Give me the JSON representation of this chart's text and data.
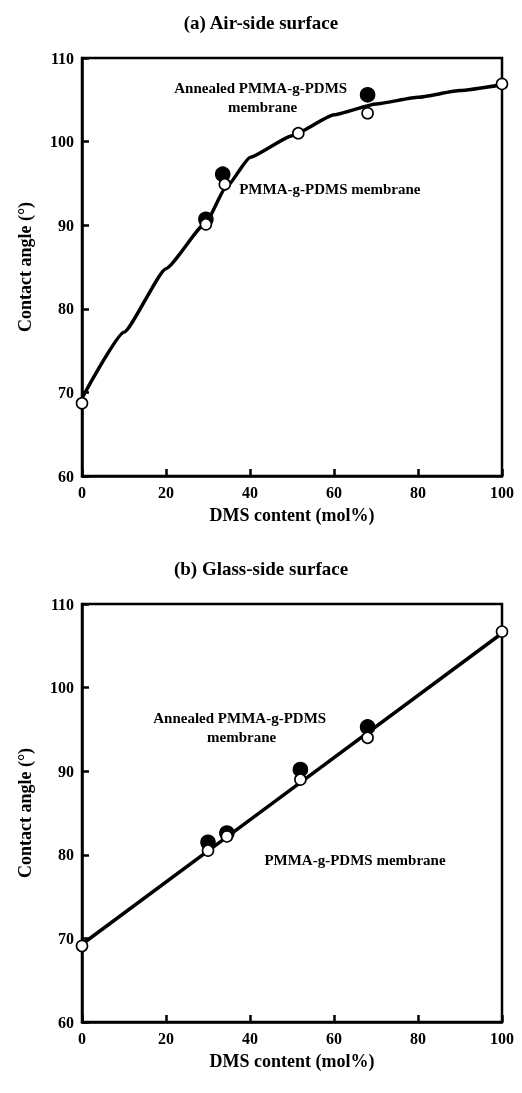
{
  "chart_data": [
    {
      "type": "scatter",
      "title": "(a) Air-side surface",
      "xlabel": "DMS content (mol%)",
      "ylabel": "Contact angle (°)",
      "xlim": [
        0,
        100
      ],
      "xticks": [
        0,
        20,
        40,
        60,
        80,
        100
      ],
      "ylim": [
        60,
        110
      ],
      "yticks": [
        60,
        70,
        80,
        90,
        100,
        110
      ],
      "grid": false,
      "legend": false,
      "marker": "circle",
      "series": [
        {
          "type": "line",
          "marker": "none",
          "color": "#000000",
          "x": [
            0,
            10,
            20,
            29.5,
            34,
            40,
            50,
            60,
            70,
            80,
            90,
            100
          ],
          "values": [
            69.3,
            77.2,
            84.8,
            90.3,
            94.3,
            98.1,
            100.7,
            103.2,
            104.5,
            105.3,
            106.1,
            106.8
          ]
        },
        {
          "name": "Annealed PMMA-g-PDMS membrane",
          "color": "#000000",
          "x": [
            29.5,
            33.5,
            68
          ],
          "values": [
            90.7,
            96.1,
            105.6
          ]
        },
        {
          "name": "PMMA-g-PDMS membrane",
          "color": "#ffffff",
          "x": [
            0,
            29.5,
            34,
            51.5,
            68,
            100
          ],
          "values": [
            68.7,
            90.1,
            94.9,
            101.0,
            103.4,
            106.9
          ]
        }
      ]
    },
    {
      "type": "scatter",
      "title": "(b) Glass-side surface",
      "xlabel": "DMS content (mol%)",
      "ylabel": "Contact angle (°)",
      "xlim": [
        0,
        100
      ],
      "xticks": [
        0,
        20,
        40,
        60,
        80,
        100
      ],
      "ylim": [
        60,
        110
      ],
      "yticks": [
        60,
        70,
        80,
        90,
        100,
        110
      ],
      "grid": false,
      "legend": false,
      "marker": "circle",
      "series": [
        {
          "type": "line",
          "marker": "none",
          "color": "#000000",
          "x": [
            0,
            100
          ],
          "values": [
            69.3,
            106.5
          ]
        },
        {
          "name": "Annealed PMMA-g-PDMS membrane",
          "color": "#000000",
          "x": [
            30,
            34.5,
            52,
            68
          ],
          "values": [
            81.5,
            82.6,
            90.2,
            95.3
          ]
        },
        {
          "name": "PMMA-g-PDMS membrane",
          "color": "#ffffff",
          "x": [
            0,
            30,
            34.5,
            52,
            68,
            100
          ],
          "values": [
            69.1,
            80.5,
            82.2,
            89.0,
            94.0,
            106.7
          ]
        }
      ]
    }
  ]
}
